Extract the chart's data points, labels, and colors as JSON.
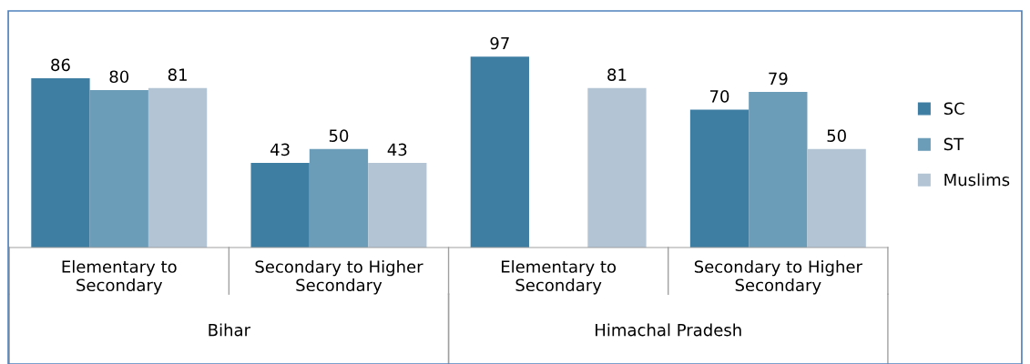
{
  "chart_data": {
    "type": "bar",
    "categories": [
      "Elementary to\nSecondary",
      "Secondary to Higher\nSecondary",
      "Elementary to\nSecondary",
      "Secondary to Higher\nSecondary"
    ],
    "series": [
      {
        "name": "SC",
        "color": "#3e7ea3",
        "values": [
          86,
          43,
          97,
          70
        ]
      },
      {
        "name": "ST",
        "color": "#6b9cb8",
        "values": [
          80,
          50,
          null,
          79
        ]
      },
      {
        "name": "Muslims",
        "color": "#b3c5d5",
        "values": [
          81,
          43,
          81,
          50
        ]
      }
    ],
    "annotations": [
      "Bihar",
      "Himachal Pradesh"
    ],
    "data_labels": true,
    "legend": "right",
    "grid": false
  }
}
